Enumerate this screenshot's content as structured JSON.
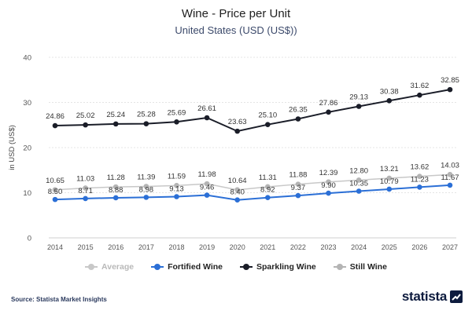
{
  "header": {
    "title": "Wine - Price per Unit",
    "subtitle": "United States (USD (US$))"
  },
  "footer": {
    "source": "Source: Statista Market Insights",
    "brand": "statista"
  },
  "chart_data": {
    "type": "line",
    "title": "Wine - Price per Unit",
    "subtitle": "United States (USD (US$))",
    "xlabel": "",
    "ylabel": "in USD (US$)",
    "ylim": [
      0,
      40
    ],
    "yticks": [
      0,
      10,
      20,
      30,
      40
    ],
    "grid": true,
    "legend_position": "bottom",
    "x": [
      "2014",
      "2015",
      "2016",
      "2017",
      "2018",
      "2019",
      "2020",
      "2021",
      "2022",
      "2023",
      "2024",
      "2025",
      "2026",
      "2027"
    ],
    "series": [
      {
        "name": "Average",
        "color": "#c8c8c8",
        "muted": true,
        "values": [
          10.65,
          11.03,
          11.28,
          11.39,
          11.59,
          11.98,
          10.64,
          11.31,
          11.88,
          12.39,
          12.8,
          13.21,
          13.62,
          14.03
        ],
        "labels": [
          "10.65",
          "11.03",
          "11.28",
          "11.39",
          "11.59",
          "11.98",
          "10.64",
          "11.31",
          "11.88",
          "12.39",
          "12.80",
          "13.21",
          "13.62",
          "14.03"
        ]
      },
      {
        "name": "Fortified Wine",
        "color": "#2b6fd6",
        "values": [
          8.5,
          8.71,
          8.88,
          8.98,
          9.13,
          9.46,
          8.4,
          8.92,
          9.37,
          9.9,
          10.35,
          10.79,
          11.23,
          11.67
        ],
        "labels": [
          "8.50",
          "8.71",
          "8.88",
          "8.98",
          "9.13",
          "9.46",
          "8.40",
          "8.92",
          "9.37",
          "9.90",
          "10.35",
          "10.79",
          "11.23",
          "11.67"
        ]
      },
      {
        "name": "Sparkling Wine",
        "color": "#1a1d28",
        "values": [
          24.86,
          25.02,
          25.24,
          25.28,
          25.69,
          26.61,
          23.63,
          25.1,
          26.35,
          27.86,
          29.13,
          30.38,
          31.62,
          32.85
        ],
        "labels": [
          "24.86",
          "25.02",
          "25.24",
          "25.28",
          "25.69",
          "26.61",
          "23.63",
          "25.10",
          "26.35",
          "27.86",
          "29.13",
          "30.38",
          "31.62",
          "32.85"
        ]
      },
      {
        "name": "Still Wine",
        "color": "#b4b4b4",
        "values": [
          10.65,
          11.03,
          11.28,
          11.39,
          11.59,
          11.98,
          10.64,
          11.31,
          11.88,
          12.39,
          12.8,
          13.21,
          13.62,
          14.03
        ],
        "labels": [],
        "draw_line": false
      }
    ]
  }
}
